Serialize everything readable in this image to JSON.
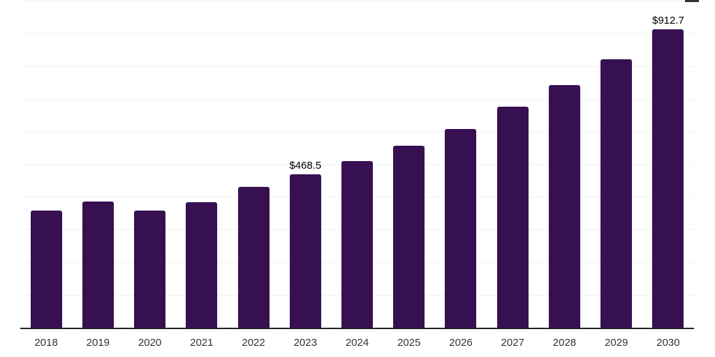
{
  "chart_data": {
    "type": "bar",
    "title": "",
    "xlabel": "",
    "ylabel": "",
    "categories": [
      "2018",
      "2019",
      "2020",
      "2021",
      "2022",
      "2023",
      "2024",
      "2025",
      "2026",
      "2027",
      "2028",
      "2029",
      "2030"
    ],
    "values": [
      359,
      386,
      358,
      384,
      431,
      468.5,
      509,
      556,
      607,
      675,
      742,
      821,
      912.7
    ],
    "annotations": [
      {
        "category": "2023",
        "text": "$468.5"
      },
      {
        "category": "2030",
        "text": "$912.7"
      }
    ],
    "ylim": [
      0,
      1000
    ],
    "gridline_step": 100,
    "grid": true,
    "legend": false,
    "y_axis_labels_visible": false,
    "colors": {
      "bar": "#371052",
      "axis": "#222222",
      "gridline": "#f1f1f1",
      "tick_label": "#333333",
      "data_label": "#000000",
      "background": "#ffffff",
      "artifact": "#333333"
    }
  }
}
